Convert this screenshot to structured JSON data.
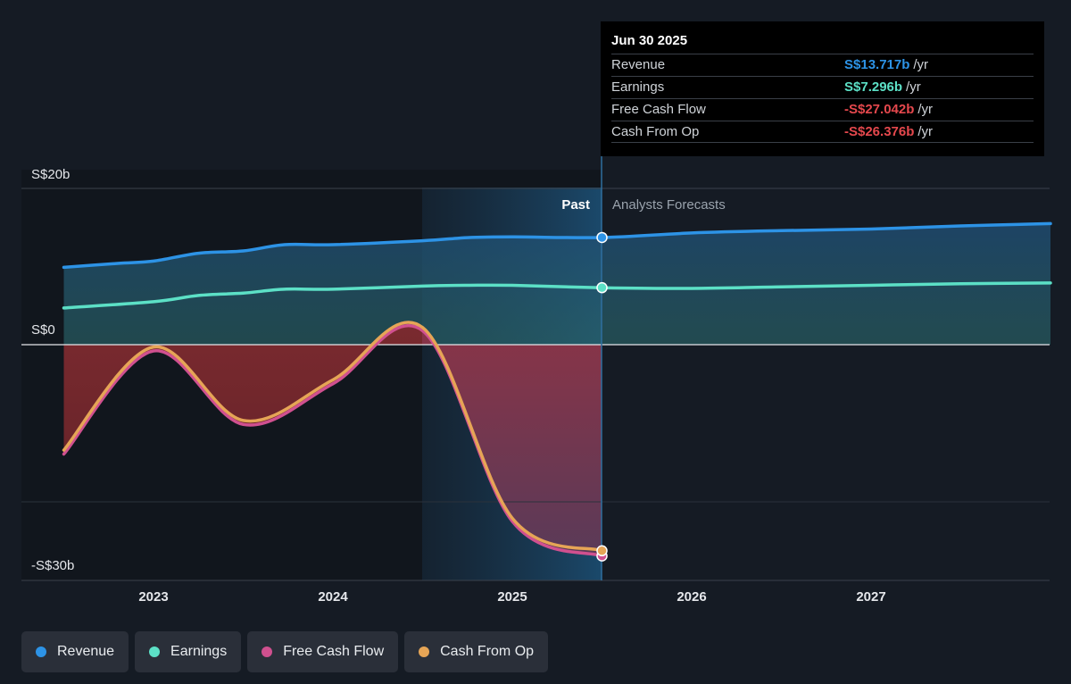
{
  "chart_data": {
    "type": "line",
    "currency_labels": [
      "S$20b",
      "S$0",
      "-S$30b"
    ],
    "ylim": [
      -30,
      20
    ],
    "x_ticks": [
      "2023",
      "2024",
      "2025",
      "2026",
      "2027"
    ],
    "past_label": "Past",
    "forecast_label": "Analysts Forecasts",
    "series": [
      {
        "name": "Revenue",
        "color": "#2d93e6",
        "points": [
          [
            2022.5,
            9.9
          ],
          [
            2022.8,
            10.4
          ],
          [
            2023.0,
            10.7
          ],
          [
            2023.25,
            11.7
          ],
          [
            2023.5,
            12.0
          ],
          [
            2023.73,
            12.8
          ],
          [
            2024.0,
            12.8
          ],
          [
            2024.5,
            13.3
          ],
          [
            2024.75,
            13.7
          ],
          [
            2025.0,
            13.8
          ],
          [
            2025.5,
            13.717
          ],
          [
            2026.0,
            14.3
          ],
          [
            2026.5,
            14.6
          ],
          [
            2027.0,
            14.8
          ],
          [
            2027.5,
            15.2
          ],
          [
            2028.0,
            15.5
          ]
        ]
      },
      {
        "name": "Earnings",
        "color": "#5ce0c6",
        "points": [
          [
            2022.5,
            4.7
          ],
          [
            2023.0,
            5.5
          ],
          [
            2023.25,
            6.3
          ],
          [
            2023.5,
            6.6
          ],
          [
            2023.73,
            7.1
          ],
          [
            2024.0,
            7.1
          ],
          [
            2024.5,
            7.5
          ],
          [
            2024.75,
            7.6
          ],
          [
            2025.0,
            7.6
          ],
          [
            2025.5,
            7.296
          ],
          [
            2026.0,
            7.2
          ],
          [
            2026.5,
            7.4
          ],
          [
            2027.0,
            7.6
          ],
          [
            2027.5,
            7.8
          ],
          [
            2028.0,
            7.9
          ]
        ]
      },
      {
        "name": "Free Cash Flow",
        "color": "#d0508f",
        "points": [
          [
            2022.5,
            -14.0
          ],
          [
            2023.0,
            -0.8
          ],
          [
            2023.5,
            -10.2
          ],
          [
            2024.0,
            -5.0
          ],
          [
            2024.5,
            1.8
          ],
          [
            2025.0,
            -22.6
          ],
          [
            2025.5,
            -27.042
          ]
        ]
      },
      {
        "name": "Cash From Op",
        "color": "#e6a556",
        "points": [
          [
            2022.5,
            -13.5
          ],
          [
            2023.0,
            -0.3
          ],
          [
            2023.5,
            -9.7
          ],
          [
            2024.0,
            -4.5
          ],
          [
            2024.5,
            2.2
          ],
          [
            2025.0,
            -22.2
          ],
          [
            2025.5,
            -26.376
          ]
        ]
      }
    ],
    "tooltip": {
      "date": "Jun 30 2025",
      "rows": [
        {
          "label": "Revenue",
          "value": "S$13.717b",
          "unit": "/yr",
          "color": "#2d93e6"
        },
        {
          "label": "Earnings",
          "value": "S$7.296b",
          "unit": "/yr",
          "color": "#5ce0c6"
        },
        {
          "label": "Free Cash Flow",
          "value": "-S$27.042b",
          "unit": "/yr",
          "color": "#e5484d"
        },
        {
          "label": "Cash From Op",
          "value": "-S$26.376b",
          "unit": "/yr",
          "color": "#e5484d"
        }
      ]
    }
  },
  "legend": [
    {
      "label": "Revenue",
      "color": "#2d93e6"
    },
    {
      "label": "Earnings",
      "color": "#5ce0c6"
    },
    {
      "label": "Free Cash Flow",
      "color": "#d0508f"
    },
    {
      "label": "Cash From Op",
      "color": "#e6a556"
    }
  ]
}
